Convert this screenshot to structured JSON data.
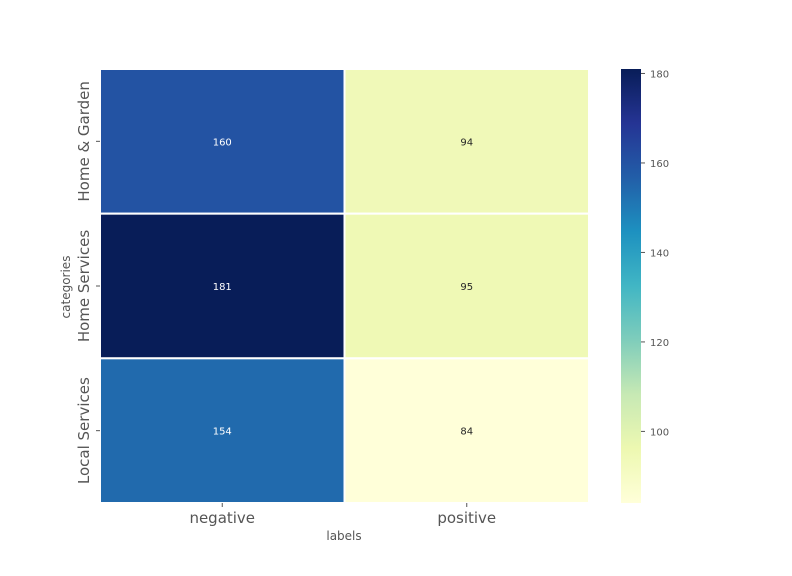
{
  "chart_data": {
    "type": "heatmap",
    "title": "",
    "xlabel": "labels",
    "ylabel": "categories",
    "x_categories": [
      "negative",
      "positive"
    ],
    "y_categories": [
      "Home & Garden",
      "Home Services",
      "Local Services"
    ],
    "values": [
      [
        160,
        94
      ],
      [
        181,
        95
      ],
      [
        154,
        84
      ]
    ],
    "annotations": true,
    "colormap": "YlGnBu",
    "colorbar": {
      "min": 84,
      "max": 181,
      "ticks": [
        100,
        120,
        140,
        160,
        180
      ]
    },
    "colors": {
      "annotation_dark": "#262626",
      "annotation_light": "#ffffff",
      "cell_border": "#ffffff"
    }
  }
}
